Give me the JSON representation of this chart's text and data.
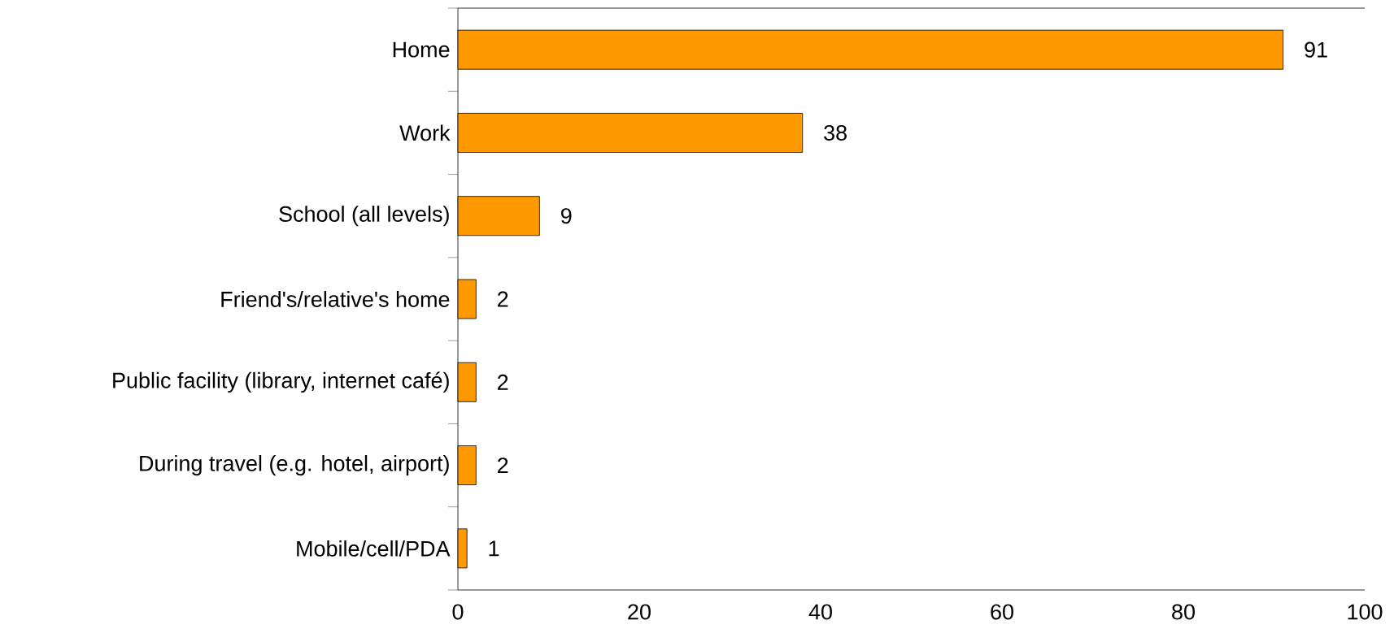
{
  "chart_data": {
    "type": "bar",
    "orientation": "horizontal",
    "categories": [
      "Home",
      "Work",
      "School (all levels)",
      "Friend's/relative's home",
      "Public facility (library, internet café)",
      "During travel (e.g. hotel, airport)",
      "Mobile/cell/PDA"
    ],
    "values": [
      91,
      38,
      9,
      2,
      2,
      2,
      1
    ],
    "color": "#ff9900",
    "xlim": [
      0,
      100
    ],
    "xticks": [
      0,
      20,
      40,
      60,
      80,
      100
    ],
    "data_labels": true
  }
}
